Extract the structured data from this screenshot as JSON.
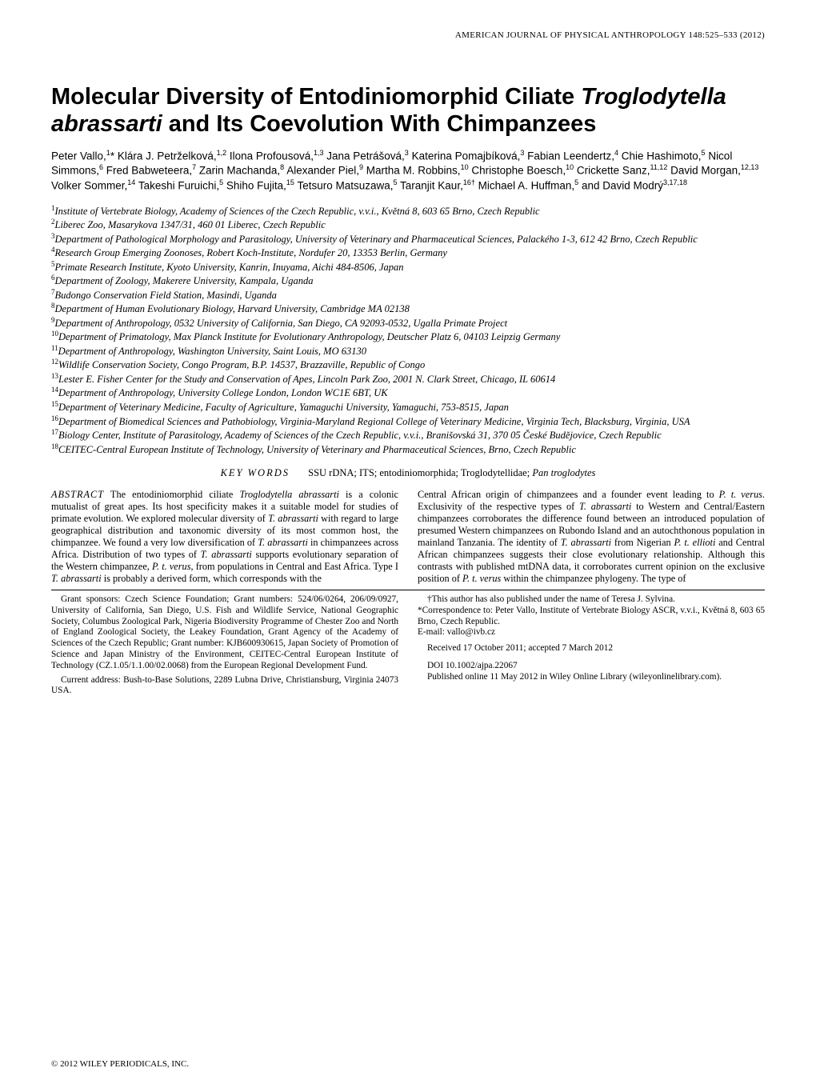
{
  "journal_header": "AMERICAN JOURNAL OF PHYSICAL ANTHROPOLOGY 148:525–533 (2012)",
  "title_part1": "Molecular Diversity of Entodiniomorphid Ciliate ",
  "title_italic": "Troglodytella abrassarti",
  "title_part2": " and Its Coevolution With Chimpanzees",
  "authors_html": "Peter Vallo,<sup>1</sup>* Klára J. Petrželková,<sup>1,2</sup> Ilona Profousová,<sup>1,3</sup> Jana Petrášová,<sup>3</sup> Katerina Pomajbíková,<sup>3</sup> Fabian Leendertz,<sup>4</sup> Chie Hashimoto,<sup>5</sup> Nicol Simmons,<sup>6</sup> Fred Babweteera,<sup>7</sup> Zarin Machanda,<sup>8</sup> Alexander Piel,<sup>9</sup> Martha M. Robbins,<sup>10</sup> Christophe Boesch,<sup>10</sup> Crickette Sanz,<sup>11,12</sup> David Morgan,<sup>12,13</sup> Volker Sommer,<sup>14</sup> Takeshi Furuichi,<sup>5</sup> Shiho Fujita,<sup>15</sup> Tetsuro Matsuzawa,<sup>5</sup> Taranjit Kaur,<sup>16†</sup> Michael A. Huffman,<sup>5</sup> and David Modrý<sup>3,17,18</sup>",
  "affiliations": [
    "<sup>1</sup>Institute of Vertebrate Biology, Academy of Sciences of the Czech Republic, v.v.i., Květná 8, 603 65 Brno, Czech Republic",
    "<sup>2</sup>Liberec Zoo, Masarykova 1347/31, 460 01 Liberec, Czech Republic",
    "<sup>3</sup>Department of Pathological Morphology and Parasitology, University of Veterinary and Pharmaceutical Sciences, Palackého 1-3, 612 42 Brno, Czech Republic",
    "<sup>4</sup>Research Group Emerging Zoonoses, Robert Koch-Institute, Nordufer 20, 13353 Berlin, Germany",
    "<sup>5</sup>Primate Research Institute, Kyoto University, Kanrin, Inuyama, Aichi 484-8506, Japan",
    "<sup>6</sup>Department of Zoology, Makerere University, Kampala, Uganda",
    "<sup>7</sup>Budongo Conservation Field Station, Masindi, Uganda",
    "<sup>8</sup>Department of Human Evolutionary Biology, Harvard University, Cambridge MA 02138",
    "<sup>9</sup>Department of Anthropology, 0532 University of California, San Diego, CA 92093-0532, Ugalla Primate Project",
    "<sup>10</sup>Department of Primatology, Max Planck Institute for Evolutionary Anthropology, Deutscher Platz 6, 04103 Leipzig Germany",
    "<sup>11</sup>Department of Anthropology, Washington University, Saint Louis, MO 63130",
    "<sup>12</sup>Wildlife Conservation Society, Congo Program, B.P. 14537, Brazzaville, Republic of Congo",
    "<sup>13</sup>Lester E. Fisher Center for the Study and Conservation of Apes, Lincoln Park Zoo, 2001 N. Clark Street, Chicago, IL 60614",
    "<sup>14</sup>Department of Anthropology, University College London, London WC1E 6BT, UK",
    "<sup>15</sup>Department of Veterinary Medicine, Faculty of Agriculture, Yamaguchi University, Yamaguchi, 753-8515, Japan",
    "<sup>16</sup>Department of Biomedical Sciences and Pathobiology, Virginia-Maryland Regional College of Veterinary Medicine, Virginia Tech, Blacksburg, Virginia, USA",
    "<sup>17</sup>Biology Center, Institute of Parasitology, Academy of Sciences of the Czech Republic, v.v.i., Branišovská 31, 370 05 České Budějovice, Czech Republic",
    "<sup>18</sup>CEITEC-Central European Institute of Technology, University of Veterinary and Pharmaceutical Sciences, Brno, Czech Republic"
  ],
  "keywords_label": "KEY WORDS",
  "keywords_text": "SSU rDNA; ITS; entodiniomorphida; Troglodytellidae; ",
  "keywords_italic": "Pan troglodytes",
  "abstract_label": "ABSTRACT",
  "abstract_col1": "        The entodiniomorphid ciliate <span class=\"italic\">Troglodytella abrassarti</span> is a colonic mutualist of great apes. Its host specificity makes it a suitable model for studies of primate evolution. We explored molecular diversity of <span class=\"italic\">T. abrassarti</span> with regard to large geographical distribution and taxonomic diversity of its most common host, the chimpanzee. We found a very low diversification of <span class=\"italic\">T. abrassarti</span> in chimpanzees across Africa. Distribution of two types of <span class=\"italic\">T. abrassarti</span> supports evolutionary separation of the Western chimpanzee, <span class=\"italic\">P. t. verus</span>, from populations in Central and East Africa. Type I <span class=\"italic\">T. abrassarti</span> is probably a derived form, which corresponds with the",
  "abstract_col2": "Central African origin of chimpanzees and a founder event leading to <span class=\"italic\">P. t. verus</span>. Exclusivity of the respective types of <span class=\"italic\">T. abrassarti</span> to Western and Central/Eastern chimpanzees corroborates the difference found between an introduced population of presumed Western chimpanzees on Rubondo Island and an autochthonous population in mainland Tanzania. The identity of <span class=\"italic\">T. abrassarti</span> from Nigerian <span class=\"italic\">P. t. ellioti</span> and Central African chimpanzees suggests their close evolutionary relationship. Although this contrasts with published mtDNA data, it corroborates current opinion on the exclusive position of <span class=\"italic\">P. t. verus</span> within the chimpanzee phylogeny. The type of",
  "footer_left_p1": "Grant sponsors: Czech Science Foundation; Grant numbers: 524/06/0264, 206/09/0927, University of California, San Diego, U.S. Fish and Wildlife Service, National Geographic Society, Columbus Zoological Park, Nigeria Biodiversity Programme of Chester Zoo and North of England Zoological Society, the Leakey Foundation, Grant Agency of the Academy of Sciences of the Czech Republic; Grant number: KJB600930615, Japan Society of Promotion of Science and Japan Ministry of the Environment, CEITEC-Central European Institute of Technology (CZ.1.05/1.1.00/02.0068) from the European Regional Development Fund.",
  "footer_left_p2": "Current address: Bush-to-Base Solutions, 2289 Lubna Drive, Christiansburg, Virginia 24073 USA.",
  "footer_right_p1": "†This author has also published under the name of Teresa J. Sylvina.",
  "footer_right_p2": "*Correspondence to: Peter Vallo, Institute of Vertebrate Biology ASCR, v.v.i., Květná 8, 603 65 Brno, Czech Republic.",
  "footer_right_p3": "E-mail: vallo@ivb.cz",
  "footer_right_p4": "Received 17 October 2011; accepted 7 March 2012",
  "footer_right_p5": "DOI 10.1002/ajpa.22067",
  "footer_right_p6": "Published online 11 May 2012 in Wiley Online Library (wileyonlinelibrary.com).",
  "copyright": "© 2012 WILEY PERIODICALS, INC."
}
